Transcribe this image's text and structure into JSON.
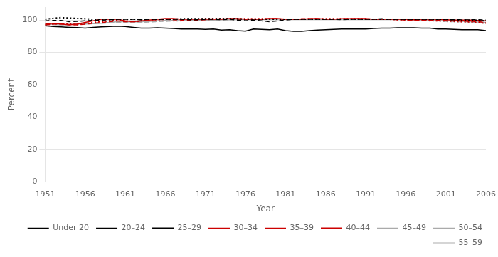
{
  "chart_data": {
    "type": "line",
    "xlabel": "Year",
    "ylabel": "Percent",
    "x": [
      1951,
      1952,
      1953,
      1954,
      1955,
      1956,
      1957,
      1958,
      1959,
      1960,
      1961,
      1962,
      1963,
      1964,
      1965,
      1966,
      1967,
      1968,
      1969,
      1970,
      1971,
      1972,
      1973,
      1974,
      1975,
      1976,
      1977,
      1978,
      1979,
      1980,
      1981,
      1982,
      1983,
      1984,
      1985,
      1986,
      1987,
      1988,
      1989,
      1990,
      1991,
      1992,
      1993,
      1994,
      1995,
      1996,
      1997,
      1998,
      1999,
      2000,
      2001,
      2002,
      2003,
      2004,
      2005,
      2006
    ],
    "series": [
      {
        "name": "Under 20",
        "color": "#000000",
        "line_style": "solid",
        "values": [
          96.5,
          96.0,
          95.8,
          95.5,
          95.3,
          95.0,
          95.5,
          95.8,
          96.0,
          96.2,
          96.0,
          95.5,
          95.0,
          95.0,
          95.2,
          95.0,
          94.8,
          94.5,
          94.5,
          94.5,
          94.2,
          94.5,
          93.8,
          94.0,
          93.5,
          93.2,
          94.5,
          94.2,
          94.0,
          94.5,
          93.5,
          93.0,
          93.0,
          93.5,
          93.8,
          94.0,
          94.2,
          94.5,
          94.5,
          94.5,
          94.5,
          94.8,
          95.0,
          95.0,
          95.2,
          95.2,
          95.2,
          95.0,
          95.0,
          94.5,
          94.5,
          94.2,
          94.0,
          94.0,
          94.0,
          93.5
        ]
      },
      {
        "name": "20–24",
        "color": "#000000",
        "line_style": "dashed",
        "values": [
          99.5,
          99.8,
          99.8,
          99.0,
          99.2,
          99.5,
          99.8,
          100.0,
          100.2,
          100.5,
          100.5,
          100.5,
          100.2,
          100.5,
          100.5,
          100.5,
          100.5,
          100.5,
          100.2,
          100.2,
          100.5,
          100.5,
          100.2,
          100.5,
          100.0,
          99.5,
          100.0,
          99.5,
          99.0,
          99.5,
          100.0,
          100.5,
          100.5,
          100.5,
          100.5,
          100.5,
          100.5,
          100.2,
          100.5,
          100.5,
          100.5,
          100.5,
          100.8,
          100.5,
          100.5,
          100.5,
          100.5,
          100.5,
          100.5,
          100.5,
          100.5,
          100.2,
          100.5,
          100.5,
          100.2,
          100.0
        ]
      },
      {
        "name": "25–29",
        "color": "#000000",
        "line_style": "dotted",
        "values": [
          100.5,
          101.0,
          101.5,
          101.2,
          101.0,
          100.8,
          100.5,
          100.5,
          100.5,
          100.5,
          100.5,
          100.5,
          100.5,
          100.5,
          100.5,
          100.5,
          100.5,
          100.8,
          100.8,
          100.8,
          100.8,
          100.8,
          100.8,
          100.8,
          100.8,
          100.5,
          100.5,
          100.5,
          100.5,
          100.5,
          100.5,
          100.5,
          100.5,
          100.5,
          100.5,
          100.5,
          100.5,
          100.5,
          100.5,
          100.5,
          100.5,
          100.5,
          100.5,
          100.5,
          100.5,
          100.5,
          100.5,
          100.5,
          100.5,
          100.5,
          100.5,
          100.2,
          100.0,
          100.0,
          99.8,
          99.5
        ]
      },
      {
        "name": "30–34",
        "color": "#cc0000",
        "line_style": "solid",
        "values": [
          97.5,
          98.0,
          97.5,
          97.0,
          97.5,
          98.5,
          99.5,
          100.5,
          100.5,
          100.5,
          99.5,
          99.0,
          99.5,
          100.0,
          100.5,
          101.0,
          101.0,
          100.5,
          100.5,
          100.5,
          100.5,
          100.5,
          100.5,
          101.0,
          101.0,
          100.5,
          100.5,
          100.5,
          101.0,
          101.0,
          100.5,
          100.5,
          100.5,
          100.8,
          101.0,
          100.5,
          100.5,
          100.8,
          100.8,
          101.0,
          101.0,
          100.5,
          100.5,
          100.5,
          100.5,
          100.5,
          100.2,
          100.5,
          100.5,
          100.5,
          100.2,
          100.0,
          100.0,
          100.0,
          99.8,
          99.5
        ]
      },
      {
        "name": "35–39",
        "color": "#cc0000",
        "line_style": "dashed",
        "values": [
          97.0,
          97.5,
          97.5,
          97.2,
          97.0,
          97.5,
          98.0,
          98.5,
          99.0,
          99.5,
          99.0,
          99.0,
          99.5,
          100.0,
          100.2,
          100.5,
          100.2,
          100.0,
          100.0,
          100.0,
          100.2,
          100.5,
          100.5,
          100.5,
          100.5,
          100.5,
          100.5,
          100.5,
          100.8,
          100.8,
          100.5,
          100.5,
          100.8,
          100.8,
          100.8,
          100.5,
          100.5,
          100.8,
          100.8,
          100.8,
          100.5,
          100.5,
          100.5,
          100.5,
          100.2,
          100.0,
          100.0,
          100.0,
          99.8,
          99.8,
          99.8,
          99.5,
          99.5,
          99.2,
          99.0,
          98.5
        ]
      },
      {
        "name": "40–44",
        "color": "#cc0000",
        "line_style": "dotted",
        "values": [
          97.0,
          97.5,
          97.8,
          97.5,
          97.2,
          97.8,
          98.5,
          99.0,
          99.5,
          99.8,
          99.5,
          99.0,
          99.5,
          100.0,
          100.2,
          100.5,
          100.5,
          100.5,
          100.5,
          100.5,
          100.8,
          100.8,
          100.8,
          100.8,
          100.8,
          100.8,
          100.8,
          100.8,
          100.8,
          100.8,
          100.5,
          100.5,
          100.5,
          100.8,
          100.8,
          100.8,
          100.8,
          100.8,
          100.8,
          100.8,
          100.8,
          100.5,
          100.5,
          100.5,
          100.2,
          100.0,
          100.0,
          99.8,
          99.8,
          99.5,
          99.5,
          99.2,
          99.0,
          98.8,
          98.5,
          98.0
        ]
      },
      {
        "name": "45–49",
        "color": "#aaaaaa",
        "line_style": "solid",
        "values": [
          97.5,
          97.2,
          97.0,
          97.2,
          97.5,
          97.5,
          97.8,
          98.0,
          98.5,
          99.0,
          99.0,
          98.8,
          99.0,
          99.2,
          99.5,
          99.8,
          99.8,
          99.5,
          99.8,
          100.0,
          100.0,
          100.0,
          100.2,
          100.2,
          100.5,
          100.5,
          100.5,
          100.5,
          100.5,
          100.5,
          100.5,
          100.5,
          100.5,
          100.5,
          100.5,
          100.5,
          100.5,
          100.5,
          100.5,
          100.5,
          100.5,
          100.5,
          100.5,
          100.5,
          100.5,
          100.5,
          100.2,
          100.0,
          99.8,
          99.8,
          99.5,
          99.5,
          99.2,
          99.0,
          98.8,
          98.5
        ]
      },
      {
        "name": "50–54",
        "color": "#aaaaaa",
        "line_style": "dashed",
        "values": [
          97.5,
          97.2,
          97.2,
          97.0,
          97.2,
          97.5,
          97.8,
          98.0,
          98.2,
          98.5,
          98.5,
          98.2,
          98.5,
          98.8,
          99.0,
          99.2,
          99.5,
          99.5,
          99.5,
          99.8,
          99.8,
          100.0,
          100.0,
          100.2,
          100.2,
          100.2,
          100.2,
          100.5,
          100.5,
          100.5,
          100.5,
          100.5,
          100.5,
          100.5,
          100.5,
          100.5,
          100.5,
          100.5,
          100.5,
          100.5,
          100.5,
          100.5,
          100.5,
          100.5,
          100.5,
          100.2,
          100.0,
          99.8,
          99.5,
          99.5,
          99.2,
          99.0,
          99.0,
          98.8,
          98.5,
          98.0
        ]
      },
      {
        "name": "55–59",
        "color": "#aaaaaa",
        "line_style": "dotted",
        "values": [
          97.8,
          97.5,
          97.5,
          97.5,
          97.5,
          97.8,
          98.0,
          98.2,
          98.5,
          98.8,
          98.8,
          98.5,
          98.8,
          99.0,
          99.2,
          99.5,
          99.5,
          99.5,
          99.8,
          99.8,
          100.0,
          100.2,
          100.2,
          100.2,
          100.5,
          100.5,
          100.5,
          100.5,
          100.5,
          100.5,
          100.5,
          100.5,
          100.5,
          100.5,
          100.5,
          100.5,
          100.5,
          100.5,
          100.5,
          100.5,
          100.5,
          100.5,
          100.5,
          100.5,
          100.2,
          100.0,
          100.0,
          99.8,
          99.5,
          99.5,
          99.2,
          99.0,
          99.0,
          98.8,
          98.5,
          98.0
        ]
      }
    ],
    "xlim": [
      1951,
      2006
    ],
    "xticks": [
      1951,
      1956,
      1961,
      1966,
      1971,
      1976,
      1981,
      1986,
      1991,
      1996,
      2001,
      2006
    ],
    "ylim": [
      0,
      108
    ],
    "yticks": [
      0,
      20,
      40,
      60,
      80,
      100
    ],
    "grid": "y",
    "legend": "lower right"
  }
}
